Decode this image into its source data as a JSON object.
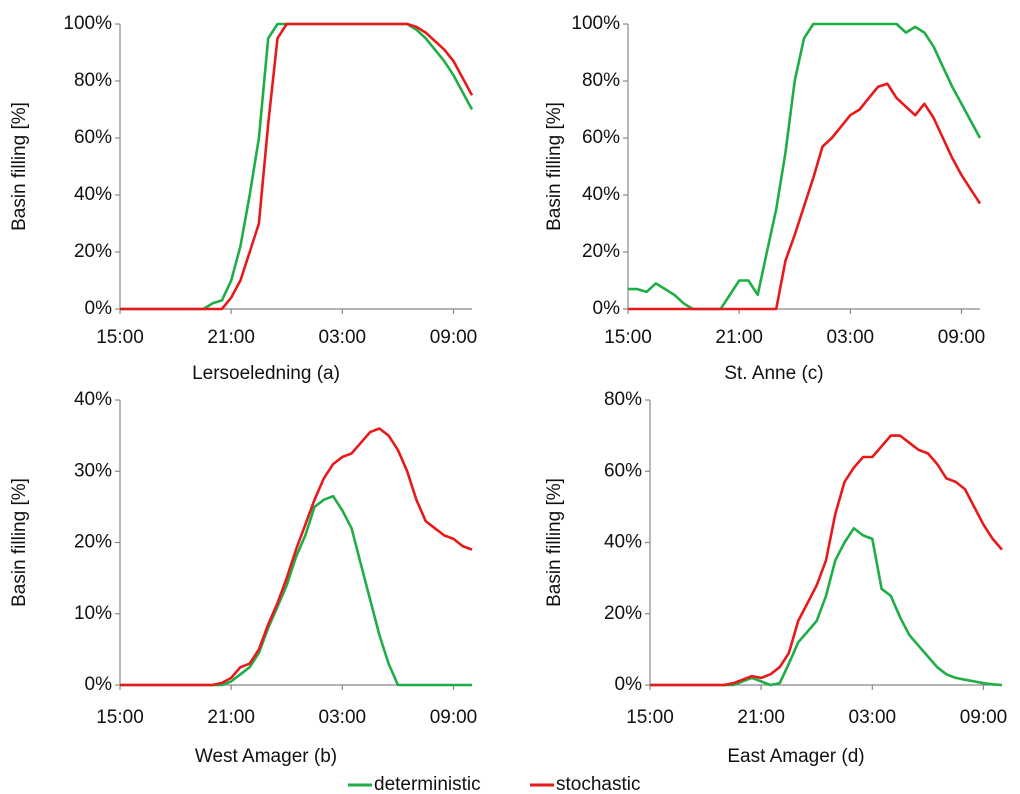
{
  "chart_data": [
    {
      "type": "line",
      "xlabel": "Lersoeledning (a)",
      "ylabel": "Basin filling [%]",
      "x": [
        "15:00",
        "15:30",
        "16:00",
        "16:30",
        "17:00",
        "17:30",
        "18:00",
        "18:30",
        "19:00",
        "19:30",
        "20:00",
        "20:30",
        "21:00",
        "21:30",
        "22:00",
        "22:30",
        "23:00",
        "23:30",
        "00:00",
        "00:30",
        "01:00",
        "01:30",
        "02:00",
        "02:30",
        "03:00",
        "03:30",
        "04:00",
        "04:30",
        "05:00",
        "05:30",
        "06:00",
        "06:30",
        "07:00",
        "07:30",
        "08:00",
        "08:30",
        "09:00",
        "09:30",
        "10:00"
      ],
      "xticks": [
        "15:00",
        "21:00",
        "03:00",
        "09:00"
      ],
      "ylim": [
        0,
        100
      ],
      "yticks": [
        {
          "value": 0,
          "label": "0%"
        },
        {
          "value": 20,
          "label": "20%"
        },
        {
          "value": 40,
          "label": "40%"
        },
        {
          "value": 60,
          "label": "60%"
        },
        {
          "value": 80,
          "label": "80%"
        },
        {
          "value": 100,
          "label": "100%"
        }
      ],
      "series": [
        {
          "name": "deterministic",
          "color": "#1fae45",
          "values": [
            0,
            0,
            0,
            0,
            0,
            0,
            0,
            0,
            0,
            0,
            2,
            3,
            10,
            22,
            40,
            60,
            95,
            100,
            100,
            100,
            100,
            100,
            100,
            100,
            100,
            100,
            100,
            100,
            100,
            100,
            100,
            100,
            98,
            95,
            91,
            87,
            82,
            76,
            70
          ]
        },
        {
          "name": "stochastic",
          "color": "#e8191a",
          "values": [
            0,
            0,
            0,
            0,
            0,
            0,
            0,
            0,
            0,
            0,
            0,
            0,
            4,
            10,
            20,
            30,
            65,
            95,
            100,
            100,
            100,
            100,
            100,
            100,
            100,
            100,
            100,
            100,
            100,
            100,
            100,
            100,
            99,
            97,
            94,
            91,
            87,
            81,
            75
          ]
        }
      ]
    },
    {
      "type": "line",
      "xlabel": "St. Anne (c)",
      "ylabel": "Basin filling [%]",
      "x": [
        "15:00",
        "15:30",
        "16:00",
        "16:30",
        "17:00",
        "17:30",
        "18:00",
        "18:30",
        "19:00",
        "19:30",
        "20:00",
        "20:30",
        "21:00",
        "21:30",
        "22:00",
        "22:30",
        "23:00",
        "23:30",
        "00:00",
        "00:30",
        "01:00",
        "01:30",
        "02:00",
        "02:30",
        "03:00",
        "03:30",
        "04:00",
        "04:30",
        "05:00",
        "05:30",
        "06:00",
        "06:30",
        "07:00",
        "07:30",
        "08:00",
        "08:30",
        "09:00",
        "09:30",
        "10:00"
      ],
      "xticks": [
        "15:00",
        "21:00",
        "03:00",
        "09:00"
      ],
      "ylim": [
        0,
        100
      ],
      "yticks": [
        {
          "value": 0,
          "label": "0%"
        },
        {
          "value": 20,
          "label": "20%"
        },
        {
          "value": 40,
          "label": "40%"
        },
        {
          "value": 60,
          "label": "60%"
        },
        {
          "value": 80,
          "label": "80%"
        },
        {
          "value": 100,
          "label": "100%"
        }
      ],
      "series": [
        {
          "name": "deterministic",
          "color": "#1fae45",
          "values": [
            7,
            7,
            6,
            9,
            7,
            5,
            2,
            0,
            0,
            0,
            0,
            5,
            10,
            10,
            5,
            20,
            35,
            55,
            80,
            95,
            100,
            100,
            100,
            100,
            100,
            100,
            100,
            100,
            100,
            100,
            97,
            99,
            97,
            92,
            85,
            78,
            72,
            66,
            60
          ]
        },
        {
          "name": "stochastic",
          "color": "#e8191a",
          "values": [
            0,
            0,
            0,
            0,
            0,
            0,
            0,
            0,
            0,
            0,
            0,
            0,
            0,
            0,
            0,
            0,
            0,
            17,
            26,
            36,
            46,
            57,
            60,
            64,
            68,
            70,
            74,
            78,
            79,
            74,
            71,
            68,
            72,
            67,
            60,
            53,
            47,
            42,
            37
          ]
        }
      ]
    },
    {
      "type": "line",
      "xlabel": "West Amager (b)",
      "ylabel": "Basin filling [%]",
      "x": [
        "15:00",
        "15:30",
        "16:00",
        "16:30",
        "17:00",
        "17:30",
        "18:00",
        "18:30",
        "19:00",
        "19:30",
        "20:00",
        "20:30",
        "21:00",
        "21:30",
        "22:00",
        "22:30",
        "23:00",
        "23:30",
        "00:00",
        "00:30",
        "01:00",
        "01:30",
        "02:00",
        "02:30",
        "03:00",
        "03:30",
        "04:00",
        "04:30",
        "05:00",
        "05:30",
        "06:00",
        "06:30",
        "07:00",
        "07:30",
        "08:00",
        "08:30",
        "09:00",
        "09:30",
        "10:00"
      ],
      "xticks": [
        "15:00",
        "21:00",
        "03:00",
        "09:00"
      ],
      "ylim": [
        0,
        40
      ],
      "yticks": [
        {
          "value": 0,
          "label": "0%"
        },
        {
          "value": 10,
          "label": "10%"
        },
        {
          "value": 20,
          "label": "20%"
        },
        {
          "value": 30,
          "label": "30%"
        },
        {
          "value": 40,
          "label": "40%"
        }
      ],
      "series": [
        {
          "name": "deterministic",
          "color": "#1fae45",
          "values": [
            0,
            0,
            0,
            0,
            0,
            0,
            0,
            0,
            0,
            0,
            0,
            0,
            0.5,
            1.5,
            2.5,
            4.5,
            8,
            11,
            14,
            18,
            21,
            25,
            26,
            26.5,
            24.5,
            22,
            17,
            12,
            7,
            3,
            0,
            0,
            0,
            0,
            0,
            0,
            0,
            0,
            0
          ]
        },
        {
          "name": "stochastic",
          "color": "#e8191a",
          "values": [
            0,
            0,
            0,
            0,
            0,
            0,
            0,
            0,
            0,
            0,
            0,
            0.3,
            1,
            2.5,
            3,
            5,
            8.5,
            11.5,
            15,
            19,
            22.5,
            26,
            29,
            31,
            32,
            32.5,
            34,
            35.5,
            36,
            35,
            33,
            30,
            26,
            23,
            22,
            21,
            20.5,
            19.5,
            19
          ]
        }
      ]
    },
    {
      "type": "line",
      "xlabel": "East Amager (d)",
      "ylabel": "Basin filling [%]",
      "x": [
        "15:00",
        "15:30",
        "16:00",
        "16:30",
        "17:00",
        "17:30",
        "18:00",
        "18:30",
        "19:00",
        "19:30",
        "20:00",
        "20:30",
        "21:00",
        "21:30",
        "22:00",
        "22:30",
        "23:00",
        "23:30",
        "00:00",
        "00:30",
        "01:00",
        "01:30",
        "02:00",
        "02:30",
        "03:00",
        "03:30",
        "04:00",
        "04:30",
        "05:00",
        "05:30",
        "06:00",
        "06:30",
        "07:00",
        "07:30",
        "08:00",
        "08:30",
        "09:00",
        "09:30",
        "10:00"
      ],
      "xticks": [
        "15:00",
        "21:00",
        "03:00",
        "09:00"
      ],
      "ylim": [
        0,
        80
      ],
      "yticks": [
        {
          "value": 0,
          "label": "0%"
        },
        {
          "value": 20,
          "label": "20%"
        },
        {
          "value": 40,
          "label": "40%"
        },
        {
          "value": 60,
          "label": "60%"
        },
        {
          "value": 80,
          "label": "80%"
        }
      ],
      "series": [
        {
          "name": "deterministic",
          "color": "#1fae45",
          "values": [
            0,
            0,
            0,
            0,
            0,
            0,
            0,
            0,
            0,
            0,
            1,
            2,
            1,
            0,
            0.5,
            6,
            12,
            15,
            18,
            25,
            35,
            40,
            44,
            42,
            41,
            27,
            25,
            19,
            14,
            11,
            8,
            5,
            3,
            2,
            1.5,
            1,
            0.5,
            0.2,
            0
          ]
        },
        {
          "name": "stochastic",
          "color": "#e8191a",
          "values": [
            0,
            0,
            0,
            0,
            0,
            0,
            0,
            0,
            0,
            0.5,
            1.5,
            2.5,
            2,
            3,
            5,
            9,
            18,
            23,
            28,
            35,
            48,
            57,
            61,
            64,
            64,
            67,
            70,
            70,
            68,
            66,
            65,
            62,
            58,
            57,
            55,
            50,
            45,
            41,
            38
          ]
        }
      ]
    }
  ]
}
